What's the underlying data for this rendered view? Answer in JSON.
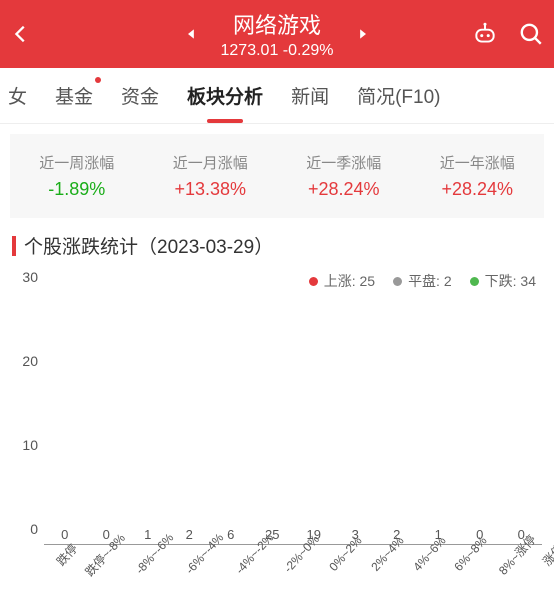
{
  "header": {
    "title": "网络游戏",
    "price": "1273.01",
    "change": "-0.29%"
  },
  "tabs": {
    "partial_left": "女",
    "items": [
      "基金",
      "资金",
      "板块分析",
      "新闻",
      "简况(F10)"
    ],
    "active_index": 2,
    "dot_index": 0
  },
  "period_stats": [
    {
      "label": "近一周涨幅",
      "value": "-1.89%",
      "dir": "neg"
    },
    {
      "label": "近一月涨幅",
      "value": "+13.38%",
      "dir": "pos"
    },
    {
      "label": "近一季涨幅",
      "value": "+28.24%",
      "dir": "pos"
    },
    {
      "label": "近一年涨幅",
      "value": "+28.24%",
      "dir": "pos"
    }
  ],
  "section": {
    "title_prefix": "个股涨跌统计",
    "date": "2023-03-29"
  },
  "legend": [
    {
      "label": "上涨",
      "count": 25,
      "color": "#e4393c"
    },
    {
      "label": "平盘",
      "count": 2,
      "color": "#999999"
    },
    {
      "label": "下跌",
      "count": 34,
      "color": "#4fb84f"
    }
  ],
  "chart": {
    "type": "bar",
    "ymax": 30,
    "yticks": [
      0,
      10,
      20,
      30
    ],
    "background": "#ffffff",
    "axis_color": "#999999",
    "value_label_color": "#555555",
    "tick_label_color": "#555555",
    "value_label_fontsize": 13,
    "tick_label_fontsize": 12,
    "bars": [
      {
        "x": "跌停",
        "v": 0,
        "color": "#4fb84f"
      },
      {
        "x": "跌停~-8%",
        "v": 0,
        "color": "#4fb84f"
      },
      {
        "x": "-8%~-6%",
        "v": 1,
        "color": "#4fb84f"
      },
      {
        "x": "-6%~-4%",
        "v": 2,
        "color": "#4fb84f"
      },
      {
        "x": "-4%~-2%",
        "v": 6,
        "color": "#4fb84f"
      },
      {
        "x": "-2%~0%",
        "v": 25,
        "color": "#4fb84f"
      },
      {
        "x": "0%~2%",
        "v": 19,
        "color": "#e4393c"
      },
      {
        "x": "2%~4%",
        "v": 3,
        "color": "#e4393c"
      },
      {
        "x": "4%~6%",
        "v": 2,
        "color": "#e4393c"
      },
      {
        "x": "6%~8%",
        "v": 1,
        "color": "#e4393c"
      },
      {
        "x": "8%~涨停",
        "v": 0,
        "color": "#e4393c"
      },
      {
        "x": "涨停",
        "v": 0,
        "color": "#e4393c"
      }
    ]
  }
}
